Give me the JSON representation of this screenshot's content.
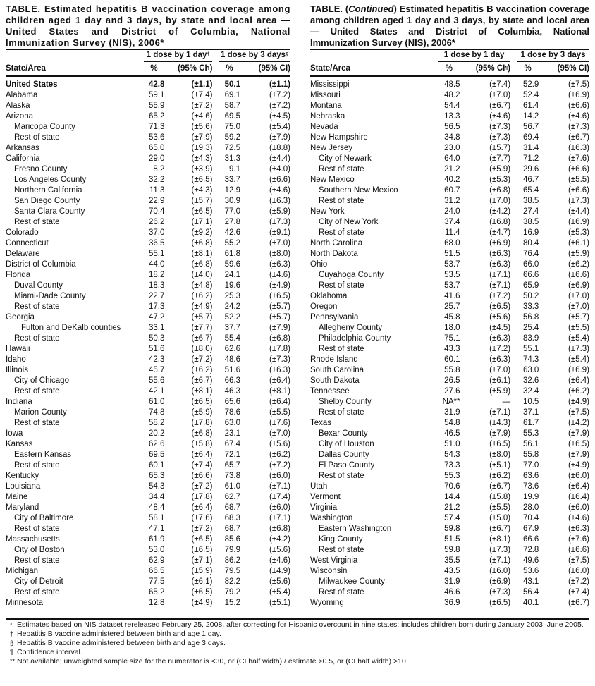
{
  "left": {
    "title": "TABLE. Estimated hepatitis B vaccination coverage among children aged 1 day and 3 days, by state and local area — United States and District of Columbia, National Immunization Survey (NIS), 2006*",
    "group1": "1 dose by 1 day",
    "group1_mark": "†",
    "group2": "1 dose by 3 days",
    "group2_mark": "§",
    "col_area": "State/Area",
    "col_pct1": "%",
    "col_ci1": "(95% CI",
    "col_ci1_mark": "¶",
    "col_ci1_close": ")",
    "col_pct3": "%",
    "col_ci3": "(95% CI)",
    "rows": [
      [
        "United States",
        0,
        "42.8",
        "(±1.1)",
        "50.1",
        "(±1.1)",
        1
      ],
      [
        "Alabama",
        0,
        "59.1",
        "(±7.4)",
        "69.1",
        "(±7.2)"
      ],
      [
        "Alaska",
        0,
        "55.9",
        "(±7.2)",
        "58.7",
        "(±7.2)"
      ],
      [
        "Arizona",
        0,
        "65.2",
        "(±4.6)",
        "69.5",
        "(±4.5)"
      ],
      [
        "Maricopa County",
        1,
        "71.3",
        "(±5.6)",
        "75.0",
        "(±5.4)"
      ],
      [
        "Rest of state",
        1,
        "53.6",
        "(±7.9)",
        "59.2",
        "(±7.9)"
      ],
      [
        "Arkansas",
        0,
        "65.0",
        "(±9.3)",
        "72.5",
        "(±8.8)"
      ],
      [
        "California",
        0,
        "29.0",
        "(±4.3)",
        "31.3",
        "(±4.4)"
      ],
      [
        "Fresno County",
        1,
        "8.2",
        "(±3.9)",
        "9.1",
        "(±4.0)"
      ],
      [
        "Los Angeles County",
        1,
        "32.2",
        "(±6.5)",
        "33.7",
        "(±6.6)"
      ],
      [
        "Northern California",
        1,
        "11.3",
        "(±4.3)",
        "12.9",
        "(±4.6)"
      ],
      [
        "San Diego County",
        1,
        "22.9",
        "(±5.7)",
        "30.9",
        "(±6.3)"
      ],
      [
        "Santa Clara County",
        1,
        "70.4",
        "(±6.5)",
        "77.0",
        "(±5.9)"
      ],
      [
        "Rest of state",
        1,
        "26.2",
        "(±7.1)",
        "27.8",
        "(±7.3)"
      ],
      [
        "Colorado",
        0,
        "37.0",
        "(±9.2)",
        "42.6",
        "(±9.1)"
      ],
      [
        "Connecticut",
        0,
        "36.5",
        "(±6.8)",
        "55.2",
        "(±7.0)"
      ],
      [
        "Delaware",
        0,
        "55.1",
        "(±8.1)",
        "61.8",
        "(±8.0)"
      ],
      [
        "District of Columbia",
        0,
        "44.0",
        "(±6.8)",
        "59.6",
        "(±6.3)"
      ],
      [
        "Florida",
        0,
        "18.2",
        "(±4.0)",
        "24.1",
        "(±4.6)"
      ],
      [
        "Duval County",
        1,
        "18.3",
        "(±4.8)",
        "19.6",
        "(±4.9)"
      ],
      [
        "Miami-Dade County",
        1,
        "22.7",
        "(±6.2)",
        "25.3",
        "(±6.5)"
      ],
      [
        "Rest of state",
        1,
        "17.3",
        "(±4.9)",
        "24.2",
        "(±5.7)"
      ],
      [
        "Georgia",
        0,
        "47.2",
        "(±5.7)",
        "52.2",
        "(±5.7)"
      ],
      [
        "Fulton and DeKalb counties",
        2,
        "33.1",
        "(±7.7)",
        "37.7",
        "(±7.9)"
      ],
      [
        "Rest of state",
        1,
        "50.3",
        "(±6.7)",
        "55.4",
        "(±6.8)"
      ],
      [
        "Hawaii",
        0,
        "51.6",
        "(±8.0)",
        "62.6",
        "(±7.8)"
      ],
      [
        "Idaho",
        0,
        "42.3",
        "(±7.2)",
        "48.6",
        "(±7.3)"
      ],
      [
        "Illinois",
        0,
        "45.7",
        "(±6.2)",
        "51.6",
        "(±6.3)"
      ],
      [
        "City of Chicago",
        1,
        "55.6",
        "(±6.7)",
        "66.3",
        "(±6.4)"
      ],
      [
        "Rest of state",
        1,
        "42.1",
        "(±8.1)",
        "46.3",
        "(±8.1)"
      ],
      [
        "Indiana",
        0,
        "61.0",
        "(±6.5)",
        "65.6",
        "(±6.4)"
      ],
      [
        "Marion County",
        1,
        "74.8",
        "(±5.9)",
        "78.6",
        "(±5.5)"
      ],
      [
        "Rest of state",
        1,
        "58.2",
        "(±7.8)",
        "63.0",
        "(±7.6)"
      ],
      [
        "Iowa",
        0,
        "20.2",
        "(±6.8)",
        "23.1",
        "(±7.0)"
      ],
      [
        "Kansas",
        0,
        "62.6",
        "(±5.8)",
        "67.4",
        "(±5.6)"
      ],
      [
        "Eastern Kansas",
        1,
        "69.5",
        "(±6.4)",
        "72.1",
        "(±6.2)"
      ],
      [
        "Rest of state",
        1,
        "60.1",
        "(±7.4)",
        "65.7",
        "(±7.2)"
      ],
      [
        "Kentucky",
        0,
        "65.3",
        "(±6.6)",
        "73.8",
        "(±6.0)"
      ],
      [
        "Louisiana",
        0,
        "54.3",
        "(±7.2)",
        "61.0",
        "(±7.1)"
      ],
      [
        "Maine",
        0,
        "34.4",
        "(±7.8)",
        "62.7",
        "(±7.4)"
      ],
      [
        "Maryland",
        0,
        "48.4",
        "(±6.4)",
        "68.7",
        "(±6.0)"
      ],
      [
        "City of Baltimore",
        1,
        "58.1",
        "(±7.6)",
        "68.3",
        "(±7.1)"
      ],
      [
        "Rest of state",
        1,
        "47.1",
        "(±7.2)",
        "68.7",
        "(±6.8)"
      ],
      [
        "Massachusetts",
        0,
        "61.9",
        "(±6.5)",
        "85.6",
        "(±4.2)"
      ],
      [
        "City of Boston",
        1,
        "53.0",
        "(±6.5)",
        "79.9",
        "(±5.6)"
      ],
      [
        "Rest of state",
        1,
        "62.9",
        "(±7.1)",
        "86.2",
        "(±4.6)"
      ],
      [
        "Michigan",
        0,
        "66.5",
        "(±5.9)",
        "79.5",
        "(±4.9)"
      ],
      [
        "City of Detroit",
        1,
        "77.5",
        "(±6.1)",
        "82.2",
        "(±5.6)"
      ],
      [
        "Rest of state",
        1,
        "65.2",
        "(±6.5)",
        "79.2",
        "(±5.4)"
      ],
      [
        "Minnesota",
        0,
        "12.8",
        "(±4.9)",
        "15.2",
        "(±5.1)"
      ]
    ]
  },
  "right": {
    "title_pre": "TABLE. (",
    "title_italic": "Continued",
    "title_post": ") Estimated hepatitis B vaccination coverage among children aged 1 day and 3 days, by state and local area — United States and District of Columbia, National Immunization Survey (NIS), 2006*",
    "group1": "1 dose by 1 day",
    "group2": "1 dose by 3 days",
    "col_area": "State/Area",
    "col_pct1": "%",
    "col_ci1": "(95% CI",
    "col_ci1_mark": "¶",
    "col_ci1_close": ")",
    "col_pct3": "%",
    "col_ci3": "(95% CI)",
    "rows": [
      [
        "Mississippi",
        0,
        "48.5",
        "(±7.4)",
        "52.9",
        "(±7.5)"
      ],
      [
        "Missouri",
        0,
        "48.2",
        "(±7.0)",
        "52.4",
        "(±6.9)"
      ],
      [
        "Montana",
        0,
        "54.4",
        "(±6.7)",
        "61.4",
        "(±6.6)"
      ],
      [
        "Nebraska",
        0,
        "13.3",
        "(±4.6)",
        "14.2",
        "(±4.6)"
      ],
      [
        "Nevada",
        0,
        "56.5",
        "(±7.3)",
        "56.7",
        "(±7.3)"
      ],
      [
        "New Hampshire",
        0,
        "34.8",
        "(±7.3)",
        "69.4",
        "(±6.7)"
      ],
      [
        "New Jersey",
        0,
        "23.0",
        "(±5.7)",
        "31.4",
        "(±6.3)"
      ],
      [
        "City of Newark",
        1,
        "64.0",
        "(±7.7)",
        "71.2",
        "(±7.6)"
      ],
      [
        "Rest of state",
        1,
        "21.2",
        "(±5.9)",
        "29.6",
        "(±6.6)"
      ],
      [
        "New Mexico",
        0,
        "40.2",
        "(±5.3)",
        "46.7",
        "(±5.5)"
      ],
      [
        "Southern New Mexico",
        1,
        "60.7",
        "(±6.8)",
        "65.4",
        "(±6.6)"
      ],
      [
        "Rest of state",
        1,
        "31.2",
        "(±7.0)",
        "38.5",
        "(±7.3)"
      ],
      [
        "New York",
        0,
        "24.0",
        "(±4.2)",
        "27.4",
        "(±4.4)"
      ],
      [
        "City of New York",
        1,
        "37.4",
        "(±6.8)",
        "38.5",
        "(±6.9)"
      ],
      [
        "Rest of state",
        1,
        "11.4",
        "(±4.7)",
        "16.9",
        "(±5.3)"
      ],
      [
        "North Carolina",
        0,
        "68.0",
        "(±6.9)",
        "80.4",
        "(±6.1)"
      ],
      [
        "North Dakota",
        0,
        "51.5",
        "(±6.3)",
        "76.4",
        "(±5.9)"
      ],
      [
        "Ohio",
        0,
        "53.7",
        "(±6.3)",
        "66.0",
        "(±6.2)"
      ],
      [
        "Cuyahoga County",
        1,
        "53.5",
        "(±7.1)",
        "66.6",
        "(±6.6)"
      ],
      [
        "Rest of state",
        1,
        "53.7",
        "(±7.1)",
        "65.9",
        "(±6.9)"
      ],
      [
        "Oklahoma",
        0,
        "41.6",
        "(±7.2)",
        "50.2",
        "(±7.0)"
      ],
      [
        "Oregon",
        0,
        "25.7",
        "(±6.5)",
        "33.3",
        "(±7.0)"
      ],
      [
        "Pennsylvania",
        0,
        "45.8",
        "(±5.6)",
        "56.8",
        "(±5.7)"
      ],
      [
        "Allegheny County",
        1,
        "18.0",
        "(±4.5)",
        "25.4",
        "(±5.5)"
      ],
      [
        "Philadelphia County",
        1,
        "75.1",
        "(±6.3)",
        "83.9",
        "(±5.4)"
      ],
      [
        "Rest of state",
        1,
        "43.3",
        "(±7.2)",
        "55.1",
        "(±7.3)"
      ],
      [
        "Rhode Island",
        0,
        "60.1",
        "(±6.3)",
        "74.3",
        "(±5.4)"
      ],
      [
        "South Carolina",
        0,
        "55.8",
        "(±7.0)",
        "63.0",
        "(±6.9)"
      ],
      [
        "South Dakota",
        0,
        "26.5",
        "(±6.1)",
        "32.6",
        "(±6.4)"
      ],
      [
        "Tennessee",
        0,
        "27.6",
        "(±5.9)",
        "32.4",
        "(±6.2)"
      ],
      [
        "Shelby County",
        1,
        "NA**",
        "—",
        "10.5",
        "(±4.9)"
      ],
      [
        "Rest of state",
        1,
        "31.9",
        "(±7.1)",
        "37.1",
        "(±7.5)"
      ],
      [
        "Texas",
        0,
        "54.8",
        "(±4.3)",
        "61.7",
        "(±4.2)"
      ],
      [
        "Bexar County",
        1,
        "46.5",
        "(±7.9)",
        "55.3",
        "(±7.9)"
      ],
      [
        "City of Houston",
        1,
        "51.0",
        "(±6.5)",
        "56.1",
        "(±6.5)"
      ],
      [
        "Dallas County",
        1,
        "54.3",
        "(±8.0)",
        "55.8",
        "(±7.9)"
      ],
      [
        "El Paso County",
        1,
        "73.3",
        "(±5.1)",
        "77.0",
        "(±4.9)"
      ],
      [
        "Rest of state",
        1,
        "55.3",
        "(±6.2)",
        "63.6",
        "(±6.0)"
      ],
      [
        "Utah",
        0,
        "70.6",
        "(±6.7)",
        "73.6",
        "(±6.4)"
      ],
      [
        "Vermont",
        0,
        "14.4",
        "(±5.8)",
        "19.9",
        "(±6.4)"
      ],
      [
        "Virginia",
        0,
        "21.2",
        "(±5.5)",
        "28.0",
        "(±6.0)"
      ],
      [
        "Washington",
        0,
        "57.4",
        "(±5.0)",
        "70.4",
        "(±4.6)"
      ],
      [
        "Eastern Washington",
        1,
        "59.8",
        "(±6.7)",
        "67.9",
        "(±6.3)"
      ],
      [
        "King County",
        1,
        "51.5",
        "(±8.1)",
        "66.6",
        "(±7.6)"
      ],
      [
        "Rest of state",
        1,
        "59.8",
        "(±7.3)",
        "72.8",
        "(±6.6)"
      ],
      [
        "West Virginia",
        0,
        "35.5",
        "(±7.1)",
        "49.6",
        "(±7.5)"
      ],
      [
        "Wisconsin",
        0,
        "43.5",
        "(±6.0)",
        "53.6",
        "(±6.0)"
      ],
      [
        "Milwaukee County",
        1,
        "31.9",
        "(±6.9)",
        "43.1",
        "(±7.2)"
      ],
      [
        "Rest of state",
        1,
        "46.6",
        "(±7.3)",
        "56.4",
        "(±7.4)"
      ],
      [
        "Wyoming",
        0,
        "36.9",
        "(±6.5)",
        "40.1",
        "(±6.7)"
      ]
    ]
  },
  "footnotes": [
    {
      "mark": "*",
      "text": "Estimates based on NIS dataset rereleased February 25, 2008, after correcting for Hispanic overcount in nine states; includes children born during January 2003–June 2005."
    },
    {
      "mark": "†",
      "text": "Hepatitis B vaccine administered between birth and age 1 day."
    },
    {
      "mark": "§",
      "text": "Hepatitis B vaccine administered between birth and age 3 days."
    },
    {
      "mark": "¶",
      "text": "Confidence interval."
    },
    {
      "mark": "**",
      "text": "Not available; unweighted sample size for the numerator is <30, or (CI half width) / estimate >0.5, or (CI half width) >10."
    }
  ]
}
